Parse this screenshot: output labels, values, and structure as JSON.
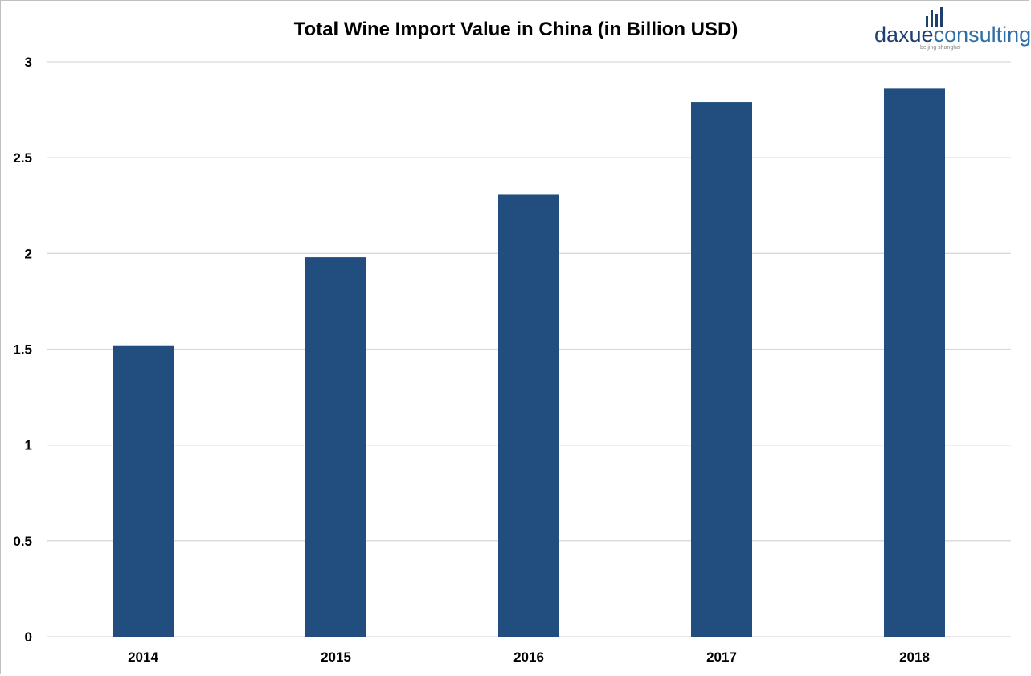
{
  "chart_data": {
    "type": "bar",
    "title": "Total Wine Import Value in China (in Billion USD)",
    "xlabel": "",
    "ylabel": "",
    "categories": [
      "2014",
      "2015",
      "2016",
      "2017",
      "2018"
    ],
    "values": [
      1.52,
      1.98,
      2.31,
      2.79,
      2.86
    ],
    "ylim": [
      0,
      3
    ],
    "yticks": [
      "0",
      "0.5",
      "1",
      "1.5",
      "2",
      "2.5",
      "3"
    ],
    "grid": true,
    "legend": "none",
    "bar_color": "#214e7e",
    "grid_color": "#d9d9d9"
  },
  "logo": {
    "word_dark": "daxue",
    "word_light": "consulting",
    "tagline": "beijing shanghai",
    "color_dark": "#1f3f6e",
    "color_light": "#2e6fa7"
  }
}
